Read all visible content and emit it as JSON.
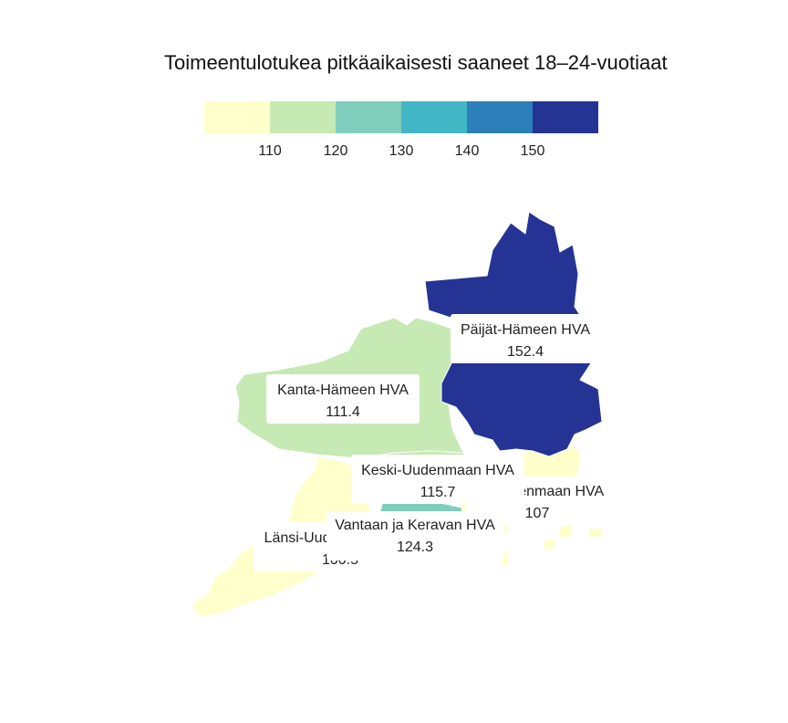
{
  "title": "Toimeentulotukea pitkäaikaisesti saaneet 18–24-vuotiaat",
  "legend": {
    "colors": [
      "#ffffcc",
      "#c7e9b4",
      "#7fcdbb",
      "#41b6c4",
      "#2c7fb8",
      "#253494"
    ],
    "breaks": [
      "110",
      "120",
      "130",
      "140",
      "150"
    ]
  },
  "regions": [
    {
      "name": "Päijät-Hämeen HVA",
      "value": "152.4",
      "color": "#253494"
    },
    {
      "name": "Kanta-Hämeen HVA",
      "value": "111.4",
      "color": "#c7e9b4"
    },
    {
      "name": "Keski-Uudenmaan HVA",
      "value": "115.7",
      "color": "#c7e9b4"
    },
    {
      "name": "Itä-Uudenmaan HVA",
      "value": "107",
      "color": "#ffffcc"
    },
    {
      "name": "Vantaan ja Keravan HVA",
      "value": "124.3",
      "color": "#7fcdbb"
    },
    {
      "name": "Länsi-Uudenmaan HVA",
      "value": "100.5",
      "color": "#ffffcc"
    }
  ]
}
